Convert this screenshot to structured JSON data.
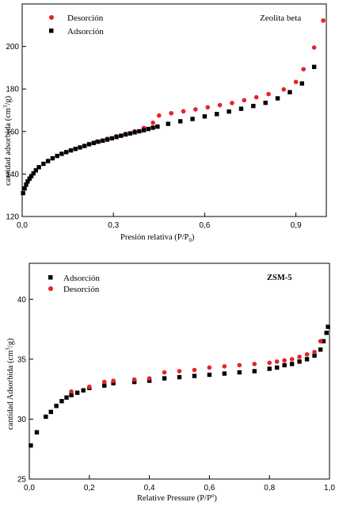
{
  "chart_data": [
    {
      "type": "scatter",
      "title": "",
      "annotation": "Zeolita beta",
      "xlabel": "Presión relativa (P/P",
      "xlabel_sub": "0",
      "xlabel_end": ")",
      "ylabel": "cantidad adsorbida (cm",
      "ylabel_sup": "3",
      "ylabel_end": "/g)",
      "xlim": [
        0.0,
        1.0
      ],
      "ylim": [
        120,
        220
      ],
      "xticks": [
        "0,0",
        "0,3",
        "0,6",
        "0,9"
      ],
      "xtick_values": [
        0.0,
        0.3,
        0.6,
        0.9
      ],
      "yticks": [
        "120",
        "140",
        "160",
        "180",
        "200"
      ],
      "ytick_values": [
        120,
        140,
        160,
        180,
        200
      ],
      "legend_position": "top-left",
      "series": [
        {
          "name": "Desorción",
          "color": "#e8212a",
          "marker": "circle",
          "x": [
            0.245,
            0.28,
            0.31,
            0.34,
            0.37,
            0.4,
            0.43,
            0.45,
            0.49,
            0.53,
            0.57,
            0.61,
            0.65,
            0.69,
            0.73,
            0.77,
            0.81,
            0.86,
            0.9,
            0.925,
            0.96,
            0.99
          ],
          "y": [
            155.3,
            156.6,
            157.8,
            158.9,
            160.1,
            161.7,
            164.1,
            167.5,
            168.6,
            169.5,
            170.4,
            171.4,
            172.4,
            173.4,
            174.7,
            176.1,
            177.6,
            179.8,
            183.3,
            189.3,
            199.5,
            212.2
          ]
        },
        {
          "name": "Adsorción",
          "color": "#000000",
          "marker": "square",
          "x": [
            0.003,
            0.008,
            0.013,
            0.018,
            0.024,
            0.03,
            0.037,
            0.045,
            0.055,
            0.07,
            0.085,
            0.1,
            0.115,
            0.13,
            0.145,
            0.16,
            0.175,
            0.19,
            0.205,
            0.22,
            0.235,
            0.25,
            0.265,
            0.28,
            0.295,
            0.31,
            0.325,
            0.34,
            0.355,
            0.37,
            0.385,
            0.4,
            0.415,
            0.43,
            0.445,
            0.48,
            0.52,
            0.56,
            0.6,
            0.64,
            0.68,
            0.72,
            0.76,
            0.8,
            0.84,
            0.88,
            0.92,
            0.96
          ],
          "y": [
            131.0,
            133.2,
            135.0,
            136.5,
            137.8,
            139.0,
            140.3,
            141.7,
            143.2,
            144.8,
            146.1,
            147.4,
            148.5,
            149.5,
            150.3,
            151.1,
            151.8,
            152.5,
            153.2,
            154.0,
            154.6,
            155.2,
            155.7,
            156.2,
            156.8,
            157.4,
            158.0,
            158.6,
            159.1,
            159.6,
            160.1,
            160.6,
            161.2,
            161.8,
            162.3,
            163.6,
            164.8,
            165.9,
            167.1,
            168.2,
            169.4,
            170.7,
            172.0,
            173.5,
            175.6,
            178.5,
            182.6,
            190.4
          ]
        }
      ]
    },
    {
      "type": "scatter",
      "title": "",
      "annotation": "ZSM-5",
      "xlabel": "Relative Pressure (P/P",
      "xlabel_sup": "o",
      "xlabel_end": ")",
      "ylabel": "cantidad Adsorbida (cm",
      "ylabel_sup": "3",
      "ylabel_end": "/g)",
      "xlim": [
        0.0,
        1.0
      ],
      "ylim": [
        25,
        43
      ],
      "xticks": [
        "0,0",
        "0,2",
        "0,4",
        "0,6",
        "0,8",
        "1,0"
      ],
      "xtick_values": [
        0.0,
        0.2,
        0.4,
        0.6,
        0.8,
        1.0
      ],
      "yticks": [
        "25",
        "30",
        "35",
        "40"
      ],
      "ytick_values": [
        25,
        30,
        35,
        40
      ],
      "legend_position": "top-left",
      "series": [
        {
          "name": "Adsorción",
          "color": "#000000",
          "marker": "square",
          "x": [
            0.005,
            0.025,
            0.055,
            0.072,
            0.09,
            0.108,
            0.124,
            0.14,
            0.16,
            0.18,
            0.2,
            0.25,
            0.28,
            0.35,
            0.4,
            0.45,
            0.5,
            0.55,
            0.6,
            0.65,
            0.7,
            0.75,
            0.8,
            0.825,
            0.85,
            0.875,
            0.9,
            0.925,
            0.95,
            0.97,
            0.98,
            0.99,
            0.995
          ],
          "y": [
            27.8,
            28.9,
            30.2,
            30.6,
            31.1,
            31.5,
            31.8,
            32.0,
            32.2,
            32.4,
            32.6,
            32.8,
            33.0,
            33.1,
            33.2,
            33.4,
            33.5,
            33.6,
            33.7,
            33.8,
            33.9,
            34.0,
            34.2,
            34.3,
            34.5,
            34.6,
            34.8,
            35.0,
            35.3,
            35.8,
            36.5,
            37.2,
            37.7
          ]
        },
        {
          "name": "Desorción",
          "color": "#e8212a",
          "marker": "circle",
          "x": [
            0.14,
            0.2,
            0.25,
            0.28,
            0.35,
            0.4,
            0.45,
            0.5,
            0.55,
            0.6,
            0.65,
            0.7,
            0.75,
            0.8,
            0.825,
            0.85,
            0.875,
            0.9,
            0.925,
            0.95,
            0.97
          ],
          "y": [
            32.3,
            32.7,
            33.1,
            33.2,
            33.3,
            33.4,
            33.9,
            34.0,
            34.1,
            34.3,
            34.4,
            34.5,
            34.6,
            34.7,
            34.8,
            34.9,
            35.0,
            35.2,
            35.4,
            35.6,
            36.5
          ]
        }
      ]
    }
  ]
}
